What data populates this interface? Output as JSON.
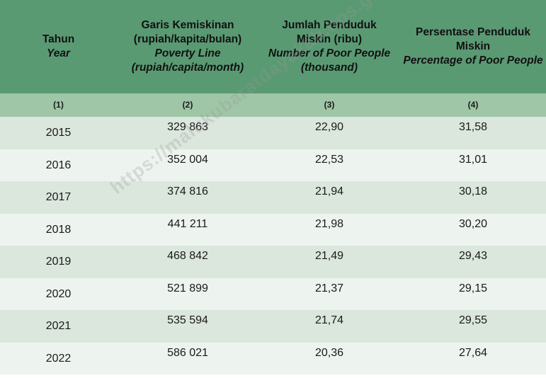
{
  "header": {
    "col1": {
      "line1": "Tahun",
      "line2": "Year"
    },
    "col2": {
      "line1": "Garis Kemiskinan",
      "line2": "(rupiah/kapita/bulan)",
      "line3": "Poverty Line",
      "line4": "(rupiah/capita/month)"
    },
    "col3": {
      "line1": "Jumlah Penduduk",
      "line2": "Miskin (ribu)",
      "line3": "Number of Poor People",
      "line4": "(thousand)"
    },
    "col4": {
      "line1": "Persentase Penduduk",
      "line2": "Miskin",
      "line3": "Percentage of Poor People"
    }
  },
  "index": [
    "(1)",
    "(2)",
    "(3)",
    "(4)"
  ],
  "rows": [
    {
      "year": "2015",
      "poverty_line": "329 863",
      "poor_people": "22,90",
      "percentage": "31,58"
    },
    {
      "year": "2016",
      "poverty_line": "352 004",
      "poor_people": "22,53",
      "percentage": "31,01"
    },
    {
      "year": "2017",
      "poverty_line": "374 816",
      "poor_people": "21,94",
      "percentage": "30,18"
    },
    {
      "year": "2018",
      "poverty_line": "441 211",
      "poor_people": "21,98",
      "percentage": "30,20"
    },
    {
      "year": "2019",
      "poverty_line": "468 842",
      "poor_people": "21,49",
      "percentage": "29,43"
    },
    {
      "year": "2020",
      "poverty_line": "521 899",
      "poor_people": "21,37",
      "percentage": "29,15"
    },
    {
      "year": "2021",
      "poverty_line": "535 594",
      "poor_people": "21,74",
      "percentage": "29,55"
    },
    {
      "year": "2022",
      "poverty_line": "586 021",
      "poor_people": "20,36",
      "percentage": "27,64"
    }
  ],
  "watermark": "https://malukubaratdayakab.bps.go.id",
  "colors": {
    "header_bg": "#5a9a73",
    "index_bg": "#9fc6a7",
    "row_odd": "#dbe6dd",
    "row_even": "#edf3ee"
  }
}
